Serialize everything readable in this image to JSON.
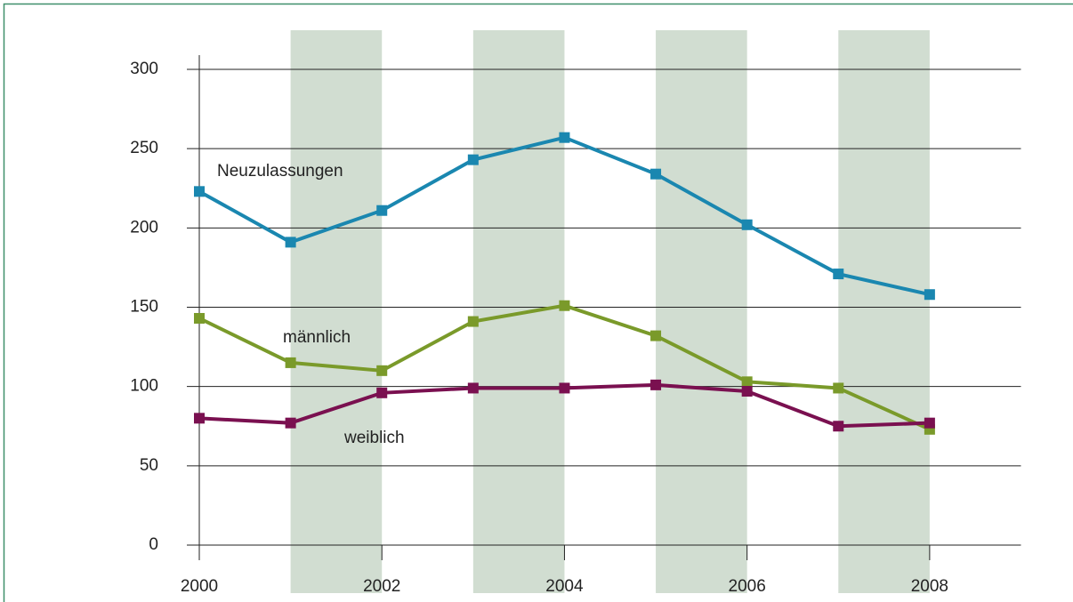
{
  "chart_data": {
    "type": "line",
    "x": [
      2000,
      2001,
      2002,
      2003,
      2004,
      2005,
      2006,
      2007,
      2008
    ],
    "series": [
      {
        "name": "Neuzulassungen",
        "color": "#1a87b0",
        "values": [
          223,
          191,
          211,
          243,
          257,
          234,
          202,
          171,
          158
        ]
      },
      {
        "name": "männlich",
        "color": "#7a9a2a",
        "values": [
          143,
          115,
          110,
          141,
          151,
          132,
          103,
          99,
          73
        ]
      },
      {
        "name": "weiblich",
        "color": "#7a1050",
        "values": [
          80,
          77,
          96,
          99,
          99,
          101,
          97,
          75,
          77
        ]
      }
    ],
    "xlim": [
      2000,
      2009
    ],
    "xticks": [
      2000,
      2002,
      2004,
      2006,
      2008
    ],
    "ylim": [
      0,
      300
    ],
    "yticks": [
      0,
      50,
      100,
      150,
      200,
      250,
      300
    ],
    "bands": [
      [
        2001,
        2002
      ],
      [
        2003,
        2004
      ],
      [
        2005,
        2006
      ],
      [
        2007,
        2008
      ]
    ],
    "band_color": "#d1ddd1",
    "grid": true
  }
}
